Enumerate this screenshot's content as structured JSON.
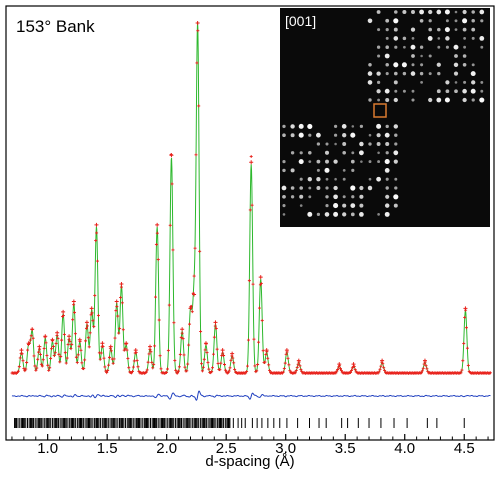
{
  "chart_data": {
    "type": "line",
    "title": "153° Bank",
    "xlabel": "d-spacing (Å)",
    "ylabel": "",
    "xlim": [
      0.65,
      4.75
    ],
    "x_ticks": [
      "1.0",
      "1.5",
      "2.0",
      "2.5",
      "3.0",
      "3.5",
      "4.0",
      "4.5"
    ],
    "x_tick_values": [
      1.0,
      1.5,
      2.0,
      2.5,
      3.0,
      3.5,
      4.0,
      4.5
    ],
    "ylim": [
      0,
      1.0
    ],
    "grid": false,
    "legend": "none",
    "background_level": 0.02,
    "series": [
      {
        "role": "observed",
        "style": "markers",
        "color": "#e8201a"
      },
      {
        "role": "calculated",
        "style": "line",
        "color": "#2db82d"
      },
      {
        "role": "difference",
        "style": "line",
        "color": "#1f3fbf"
      },
      {
        "role": "reflection_markers",
        "style": "ticks",
        "color": "#000000"
      }
    ],
    "peaks": [
      {
        "d": 0.78,
        "h": 0.06
      },
      {
        "d": 0.84,
        "h": 0.08
      },
      {
        "d": 0.87,
        "h": 0.12
      },
      {
        "d": 0.93,
        "h": 0.07
      },
      {
        "d": 0.98,
        "h": 0.1
      },
      {
        "d": 1.04,
        "h": 0.09
      },
      {
        "d": 1.08,
        "h": 0.11
      },
      {
        "d": 1.13,
        "h": 0.17
      },
      {
        "d": 1.18,
        "h": 0.1
      },
      {
        "d": 1.22,
        "h": 0.2
      },
      {
        "d": 1.27,
        "h": 0.09
      },
      {
        "d": 1.33,
        "h": 0.14
      },
      {
        "d": 1.37,
        "h": 0.18
      },
      {
        "d": 1.41,
        "h": 0.42
      },
      {
        "d": 1.46,
        "h": 0.08
      },
      {
        "d": 1.53,
        "h": 0.07
      },
      {
        "d": 1.58,
        "h": 0.2
      },
      {
        "d": 1.62,
        "h": 0.25
      },
      {
        "d": 1.66,
        "h": 0.08
      },
      {
        "d": 1.74,
        "h": 0.06
      },
      {
        "d": 1.86,
        "h": 0.07
      },
      {
        "d": 1.92,
        "h": 0.42
      },
      {
        "d": 2.04,
        "h": 0.62
      },
      {
        "d": 2.13,
        "h": 0.12
      },
      {
        "d": 2.2,
        "h": 0.18
      },
      {
        "d": 2.23,
        "h": 0.22
      },
      {
        "d": 2.26,
        "h": 1.0
      },
      {
        "d": 2.33,
        "h": 0.08
      },
      {
        "d": 2.41,
        "h": 0.14
      },
      {
        "d": 2.47,
        "h": 0.06
      },
      {
        "d": 2.55,
        "h": 0.05
      },
      {
        "d": 2.71,
        "h": 0.6
      },
      {
        "d": 2.79,
        "h": 0.27
      },
      {
        "d": 2.84,
        "h": 0.06
      },
      {
        "d": 3.01,
        "h": 0.06
      },
      {
        "d": 3.11,
        "h": 0.03
      },
      {
        "d": 3.45,
        "h": 0.02
      },
      {
        "d": 3.57,
        "h": 0.02
      },
      {
        "d": 3.81,
        "h": 0.03
      },
      {
        "d": 4.17,
        "h": 0.03
      },
      {
        "d": 4.51,
        "h": 0.18
      }
    ],
    "reflection_positions_sparse": [
      2.56,
      2.6,
      2.63,
      2.66,
      2.72,
      2.76,
      2.8,
      2.85,
      2.9,
      2.95,
      3.01,
      3.1,
      3.2,
      3.28,
      3.34,
      3.47,
      3.52,
      3.61,
      3.7,
      3.8,
      3.91,
      4.02,
      4.19,
      4.27,
      4.5
    ]
  },
  "inset": {
    "label": "[001]",
    "background": "#0a0a0a",
    "marker_color": "#d97a30"
  }
}
